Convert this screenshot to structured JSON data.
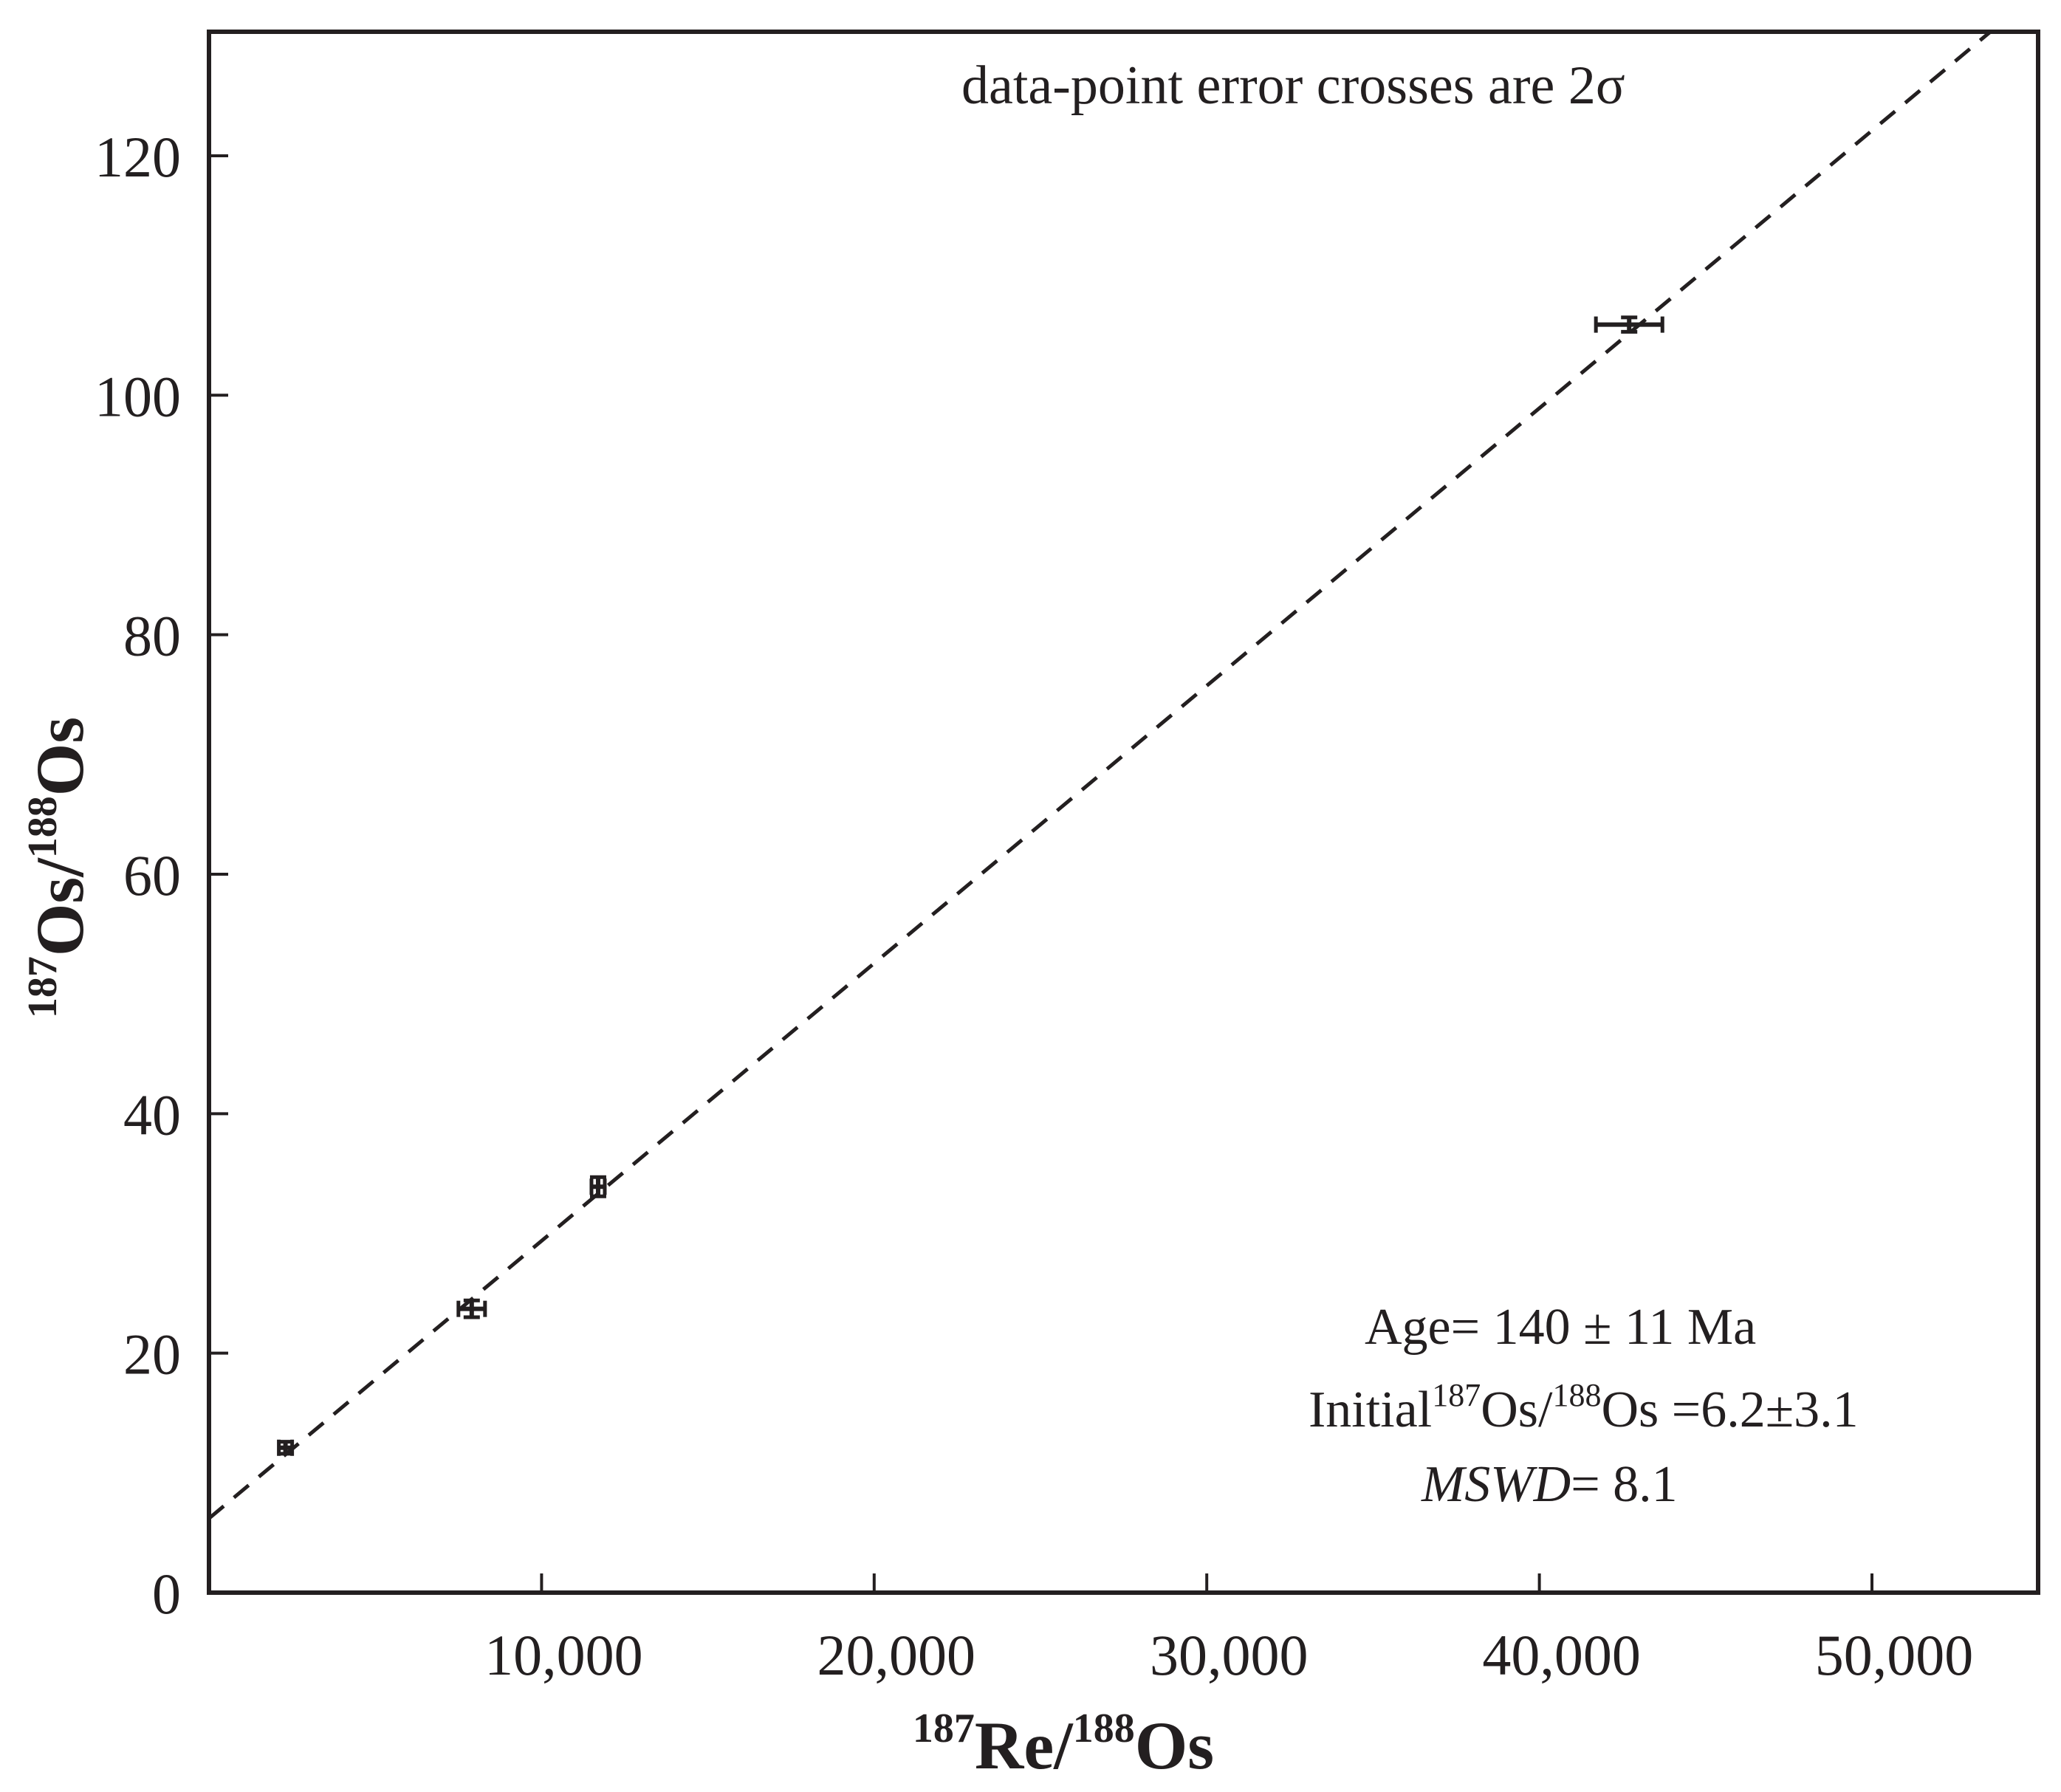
{
  "chart_data": {
    "type": "scatter",
    "xlabel": {
      "sup1": "187",
      "main1": "Re/",
      "sup2": "188",
      "main2": "Os"
    },
    "ylabel": {
      "sup1": "187",
      "main1": "Os/",
      "sup2": "188",
      "main2": "Os"
    },
    "xlim": [
      0,
      55000
    ],
    "ylim": [
      0,
      120
    ],
    "x_ticks": [
      10000,
      20000,
      30000,
      40000,
      50000
    ],
    "x_tick_labels": [
      "10,000",
      "20,000",
      "30,000",
      "40,000",
      "50,000"
    ],
    "y_ticks": [
      0,
      20,
      40,
      60,
      80,
      100,
      120
    ],
    "y_tick_labels": [
      "0",
      "20",
      "40",
      "60",
      "80",
      "100",
      "120"
    ],
    "grid": false,
    "points": [
      {
        "x": 2300,
        "y": 12.1,
        "x_err": 200,
        "y_err": 0.5
      },
      {
        "x": 7900,
        "y": 23.7,
        "x_err": 400,
        "y_err": 0.7
      },
      {
        "x": 11700,
        "y": 33.9,
        "x_err": 200,
        "y_err": 0.8
      },
      {
        "x": 42700,
        "y": 105.9,
        "x_err": 1000,
        "y_err": 0.6
      }
    ],
    "fit_line": {
      "intercept": 6.2,
      "slope": 0.002318,
      "style": "dashed"
    },
    "annotations": {
      "error_note": "data-point error crosses are 2σ",
      "age": "Age= 140  ± 11 Ma",
      "initial_prefix": "Initial",
      "initial_sup1": "187",
      "initial_mid": "Os/",
      "initial_sup2": "188",
      "initial_suffix": "Os =6.2±3.1",
      "mswd_label": "MSWD",
      "mswd_value": "= 8.1"
    },
    "colors": {
      "ink": "#231f20",
      "background": "#ffffff"
    }
  }
}
